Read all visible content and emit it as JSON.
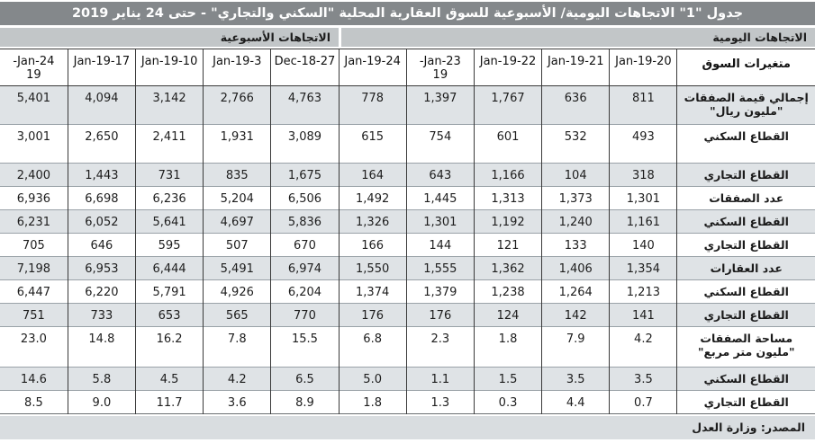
{
  "title": "جدول \"1\" الاتجاهات اليومية/ الأسبوعية للسوق العقارية المحلية \"السكني والتجاري\" - حتى 24 يناير 2019",
  "section_labels": {
    "daily": "الاتجاهات اليومية",
    "weekly": "الاتجاهات الأسبوعية"
  },
  "chart_data": {
    "type": "table",
    "title": "جدول \"1\" الاتجاهات اليومية/ الأسبوعية للسوق العقارية المحلية \"السكني والتجاري\" - حتى 24 يناير 2019",
    "direction": "rtl",
    "variables_column_header": "متغيرات السوق",
    "daily_dates": [
      "20-Jan-19",
      "21-Jan-19",
      "22-Jan-19",
      "23-Jan-\n19",
      "24-Jan-19"
    ],
    "weekly_dates": [
      "27-Dec-18",
      "3-Jan-19",
      "10-Jan-19",
      "17-Jan-19",
      "24-Jan-\n19"
    ],
    "rows": [
      {
        "label": "إجمالي قيمة الصفقات\n\"مليون ريال\"",
        "daily": [
          "811",
          "636",
          "1,767",
          "1,397",
          "778"
        ],
        "weekly": [
          "4,763",
          "2,766",
          "3,142",
          "4,094",
          "5,401"
        ]
      },
      {
        "label": "القطاع السكني",
        "daily": [
          "493",
          "532",
          "601",
          "754",
          "615"
        ],
        "weekly": [
          "3,089",
          "1,931",
          "2,411",
          "2,650",
          "3,001"
        ]
      },
      {
        "label": "القطاع التجاري",
        "daily": [
          "318",
          "104",
          "1,166",
          "643",
          "164"
        ],
        "weekly": [
          "1,675",
          "835",
          "731",
          "1,443",
          "2,400"
        ]
      },
      {
        "label": "عدد الصفقات",
        "daily": [
          "1,301",
          "1,373",
          "1,313",
          "1,445",
          "1,492"
        ],
        "weekly": [
          "6,506",
          "5,204",
          "6,236",
          "6,698",
          "6,936"
        ]
      },
      {
        "label": "القطاع السكني",
        "daily": [
          "1,161",
          "1,240",
          "1,192",
          "1,301",
          "1,326"
        ],
        "weekly": [
          "5,836",
          "4,697",
          "5,641",
          "6,052",
          "6,231"
        ]
      },
      {
        "label": "القطاع التجاري",
        "daily": [
          "140",
          "133",
          "121",
          "144",
          "166"
        ],
        "weekly": [
          "670",
          "507",
          "595",
          "646",
          "705"
        ]
      },
      {
        "label": "عدد العقارات",
        "daily": [
          "1,354",
          "1,406",
          "1,362",
          "1,555",
          "1,550"
        ],
        "weekly": [
          "6,974",
          "5,491",
          "6,444",
          "6,953",
          "7,198"
        ]
      },
      {
        "label": "القطاع السكني",
        "daily": [
          "1,213",
          "1,264",
          "1,238",
          "1,379",
          "1,374"
        ],
        "weekly": [
          "6,204",
          "4,926",
          "5,791",
          "6,220",
          "6,447"
        ]
      },
      {
        "label": "القطاع التجاري",
        "daily": [
          "141",
          "142",
          "124",
          "176",
          "176"
        ],
        "weekly": [
          "770",
          "565",
          "653",
          "733",
          "751"
        ]
      },
      {
        "label": "مساحة الصفقات\n\"مليون متر مربع\"",
        "daily": [
          "4.2",
          "7.9",
          "1.8",
          "2.3",
          "6.8"
        ],
        "weekly": [
          "15.5",
          "7.8",
          "16.2",
          "14.8",
          "23.0"
        ]
      },
      {
        "label": "القطاع السكني",
        "daily": [
          "3.5",
          "3.5",
          "1.5",
          "1.1",
          "5.0"
        ],
        "weekly": [
          "6.5",
          "4.2",
          "4.5",
          "5.8",
          "14.6"
        ]
      },
      {
        "label": "القطاع التجاري",
        "daily": [
          "0.7",
          "4.4",
          "0.3",
          "1.3",
          "1.8"
        ],
        "weekly": [
          "8.9",
          "3.6",
          "11.7",
          "9.0",
          "8.5"
        ]
      }
    ]
  },
  "footer": {
    "source": "المصدر: وزارة العدل"
  },
  "colors": {
    "title_bar_bg": "#84888b",
    "title_text": "#ffffff",
    "section_band_bg": "#c2c6c8",
    "shaded_row_bg": "#dfe3e6",
    "footer_bg": "#d9dde0",
    "border_dark": "#3a3a3a",
    "border_light": "#9aa2a8"
  }
}
